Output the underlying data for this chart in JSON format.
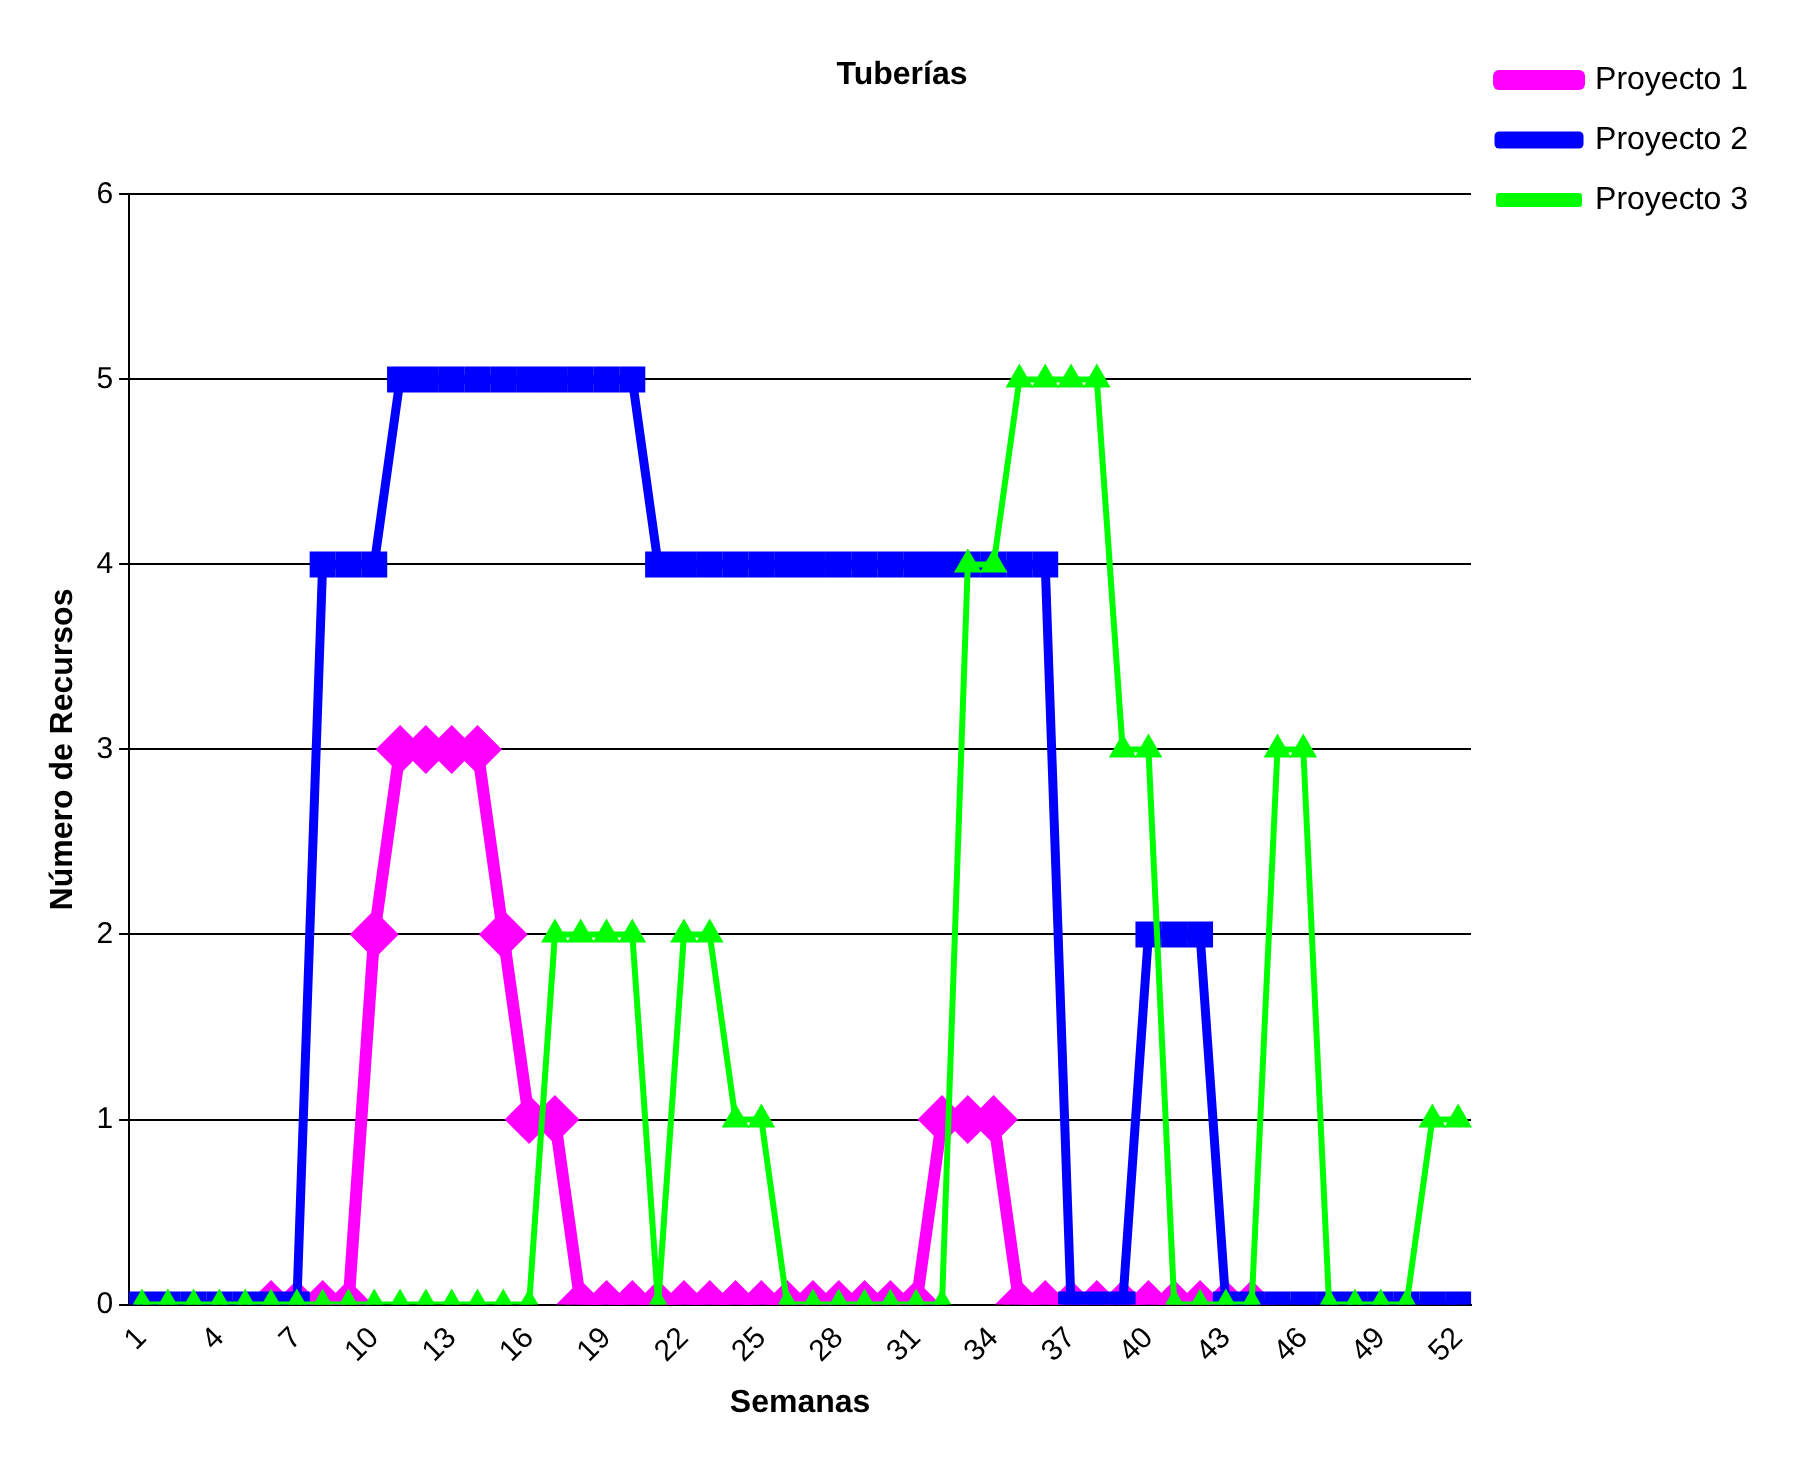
{
  "chart_data": {
    "type": "line",
    "title": "Tuberías",
    "xlabel": "Semanas",
    "ylabel": "Número de Recursos",
    "categories": [
      "1",
      null,
      null,
      "4",
      null,
      null,
      "7",
      null,
      null,
      "10",
      null,
      null,
      "13",
      null,
      null,
      "16",
      null,
      null,
      "19",
      null,
      null,
      "22",
      null,
      null,
      "25",
      null,
      null,
      "28",
      null,
      null,
      "31",
      null,
      null,
      "34",
      null,
      null,
      "37",
      null,
      null,
      "40",
      null,
      null,
      "43",
      null,
      null,
      "46",
      null,
      null,
      "49",
      null,
      null,
      "52"
    ],
    "series": [
      {
        "name": "Proyecto 1",
        "color": "#ff00ff",
        "marker": "diamond",
        "values": [
          null,
          null,
          null,
          null,
          null,
          0,
          0,
          0,
          0,
          2,
          3,
          3,
          3,
          3,
          2,
          1,
          1,
          0,
          0,
          0,
          0,
          0,
          0,
          0,
          0,
          0,
          0,
          0,
          0,
          0,
          0,
          1,
          1,
          1,
          0,
          0,
          0,
          0,
          0,
          0,
          0,
          0,
          0,
          0,
          null,
          null,
          null,
          null,
          null,
          null,
          null,
          null
        ]
      },
      {
        "name": "Proyecto 2",
        "color": "#0000ff",
        "marker": "square",
        "values": [
          0,
          0,
          0,
          0,
          0,
          0,
          0,
          4,
          4,
          4,
          5,
          5,
          5,
          5,
          5,
          5,
          5,
          5,
          5,
          5,
          4,
          4,
          4,
          4,
          4,
          4,
          4,
          4,
          4,
          4,
          4,
          4,
          4,
          4,
          4,
          4,
          0,
          0,
          0,
          2,
          2,
          2,
          0,
          0,
          0,
          0,
          0,
          0,
          0,
          0,
          0,
          0
        ]
      },
      {
        "name": "Proyecto 3",
        "color": "#00ff00",
        "marker": "triangle",
        "values": [
          0,
          0,
          0,
          0,
          0,
          0,
          0,
          0,
          0,
          0,
          0,
          0,
          0,
          0,
          0,
          0,
          2,
          2,
          2,
          2,
          0,
          2,
          2,
          1,
          1,
          0,
          0,
          0,
          0,
          0,
          0,
          0,
          4,
          4,
          5,
          5,
          5,
          5,
          3,
          3,
          0,
          0,
          0,
          0,
          3,
          3,
          0,
          0,
          0,
          0,
          1,
          1
        ]
      }
    ],
    "ylim": [
      0,
      6
    ],
    "yticks": [
      0,
      1,
      2,
      3,
      4,
      5,
      6
    ],
    "grid": "y",
    "legend": "top right",
    "line_style": "solid"
  }
}
